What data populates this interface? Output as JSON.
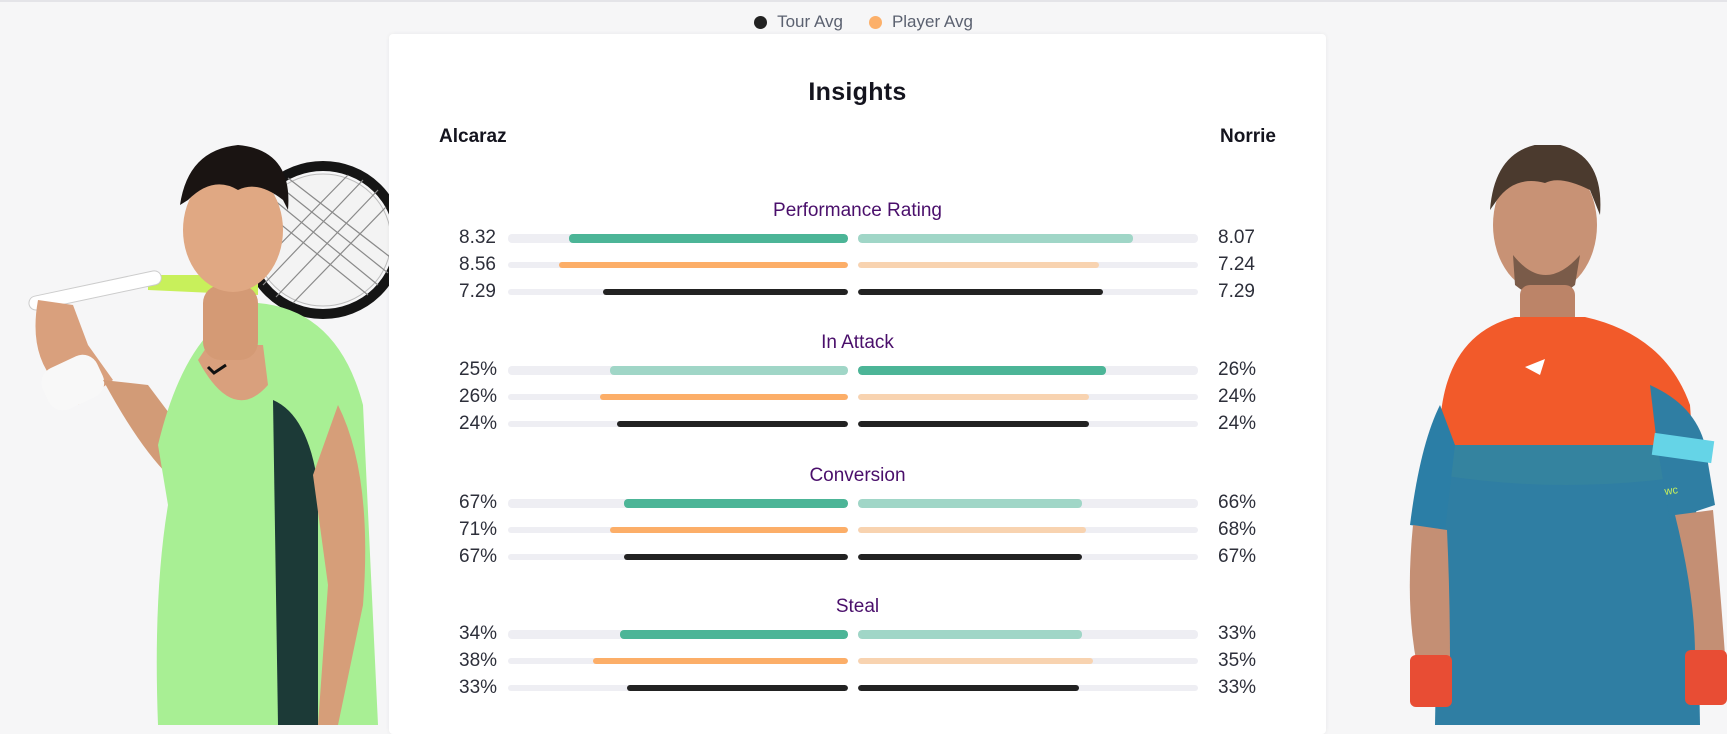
{
  "legend": [
    {
      "label": "Tour Avg",
      "color": "#222222"
    },
    {
      "label": "Player Avg",
      "color": "#fcb06a"
    }
  ],
  "card": {
    "title": "Insights",
    "player_left": "Alcaraz",
    "player_right": "Norrie"
  },
  "colors": {
    "rating_strong": "#4cb597",
    "rating_weak": "#a0d6c7",
    "player_avg_strong": "#fcae68",
    "player_avg_weak": "#f8d3b0",
    "tour_avg": "#222222",
    "track": "#eeeef3"
  },
  "groups": [
    {
      "title": "Performance Rating",
      "rows": [
        {
          "left": "8.32",
          "right": "8.07",
          "kind": "rating",
          "left_frac": 0.82,
          "right_frac": 0.81,
          "left_strong": true
        },
        {
          "left": "8.56",
          "right": "7.24",
          "kind": "player",
          "left_frac": 0.85,
          "right_frac": 0.71,
          "left_strong": true
        },
        {
          "left": "7.29",
          "right": "7.29",
          "kind": "tour",
          "left_frac": 0.72,
          "right_frac": 0.72,
          "left_strong": true
        }
      ]
    },
    {
      "title": "In Attack",
      "rows": [
        {
          "left": "25%",
          "right": "26%",
          "kind": "rating",
          "left_frac": 0.7,
          "right_frac": 0.73,
          "left_strong": false
        },
        {
          "left": "26%",
          "right": "24%",
          "kind": "player",
          "left_frac": 0.73,
          "right_frac": 0.68,
          "left_strong": true
        },
        {
          "left": "24%",
          "right": "24%",
          "kind": "tour",
          "left_frac": 0.68,
          "right_frac": 0.68,
          "left_strong": true
        }
      ]
    },
    {
      "title": "Conversion",
      "rows": [
        {
          "left": "67%",
          "right": "66%",
          "kind": "rating",
          "left_frac": 0.66,
          "right_frac": 0.66,
          "left_strong": true
        },
        {
          "left": "71%",
          "right": "68%",
          "kind": "player",
          "left_frac": 0.7,
          "right_frac": 0.67,
          "left_strong": true
        },
        {
          "left": "67%",
          "right": "67%",
          "kind": "tour",
          "left_frac": 0.66,
          "right_frac": 0.66,
          "left_strong": true
        }
      ]
    },
    {
      "title": "Steal",
      "rows": [
        {
          "left": "34%",
          "right": "33%",
          "kind": "rating",
          "left_frac": 0.67,
          "right_frac": 0.66,
          "left_strong": true
        },
        {
          "left": "38%",
          "right": "35%",
          "kind": "player",
          "left_frac": 0.75,
          "right_frac": 0.69,
          "left_strong": true
        },
        {
          "left": "33%",
          "right": "33%",
          "kind": "tour",
          "left_frac": 0.65,
          "right_frac": 0.65,
          "left_strong": true
        }
      ]
    }
  ]
}
